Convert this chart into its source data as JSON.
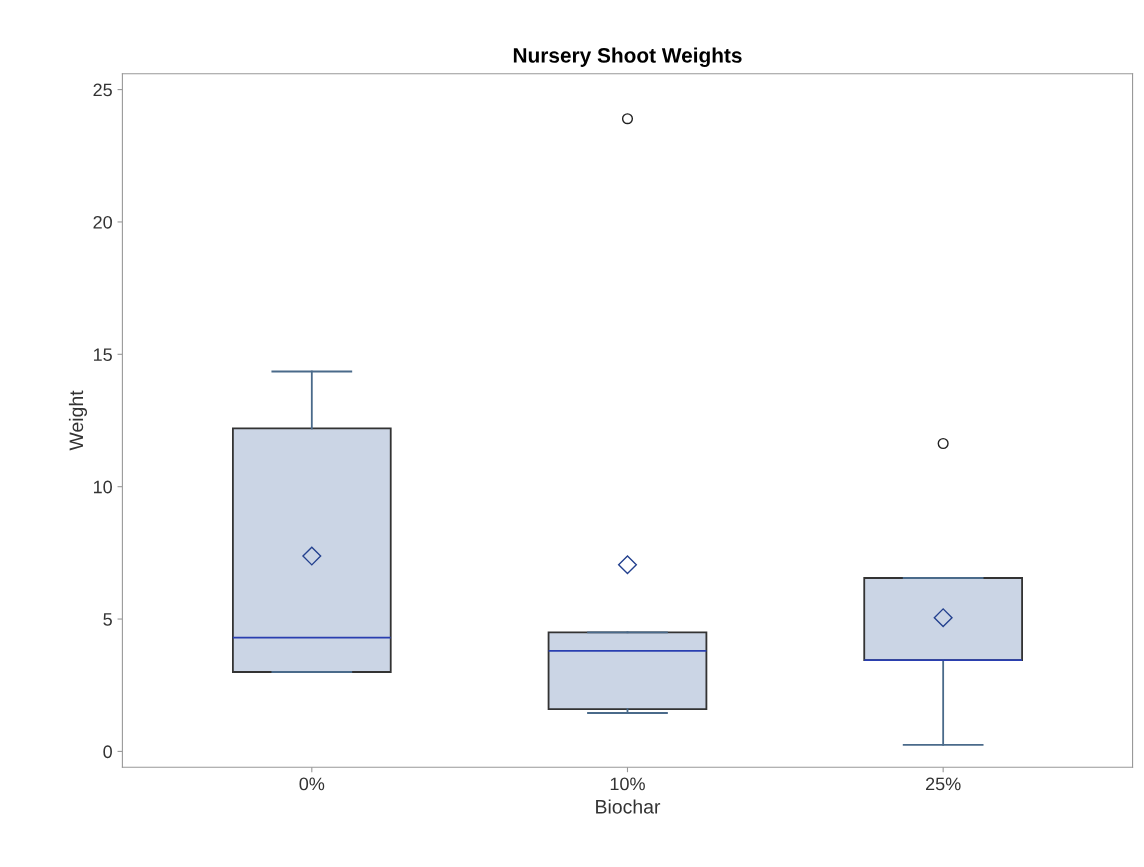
{
  "chart_data": {
    "type": "box",
    "title": "Nursery Shoot Weights",
    "xlabel": "Biochar",
    "ylabel": "Weight",
    "categories": [
      "0%",
      "10%",
      "25%"
    ],
    "boxes": [
      {
        "low": 3.0,
        "q1": 3.0,
        "median": 4.3,
        "q3": 12.2,
        "high": 14.35,
        "mean": 7.38
      },
      {
        "low": 1.45,
        "q1": 1.6,
        "median": 3.8,
        "q3": 4.5,
        "high": 4.5,
        "mean": 7.05,
        "outliers": [
          23.9
        ]
      },
      {
        "low": 0.25,
        "q1": 3.45,
        "median": 3.45,
        "q3": 6.55,
        "high": 6.55,
        "mean": 5.05,
        "outliers": [
          11.63
        ]
      }
    ],
    "color": "#cbd5e5",
    "ylim": [
      -0.6,
      25.6
    ],
    "yticks": [
      0,
      5,
      10,
      15,
      20,
      25
    ],
    "grid": false,
    "legend": false
  }
}
